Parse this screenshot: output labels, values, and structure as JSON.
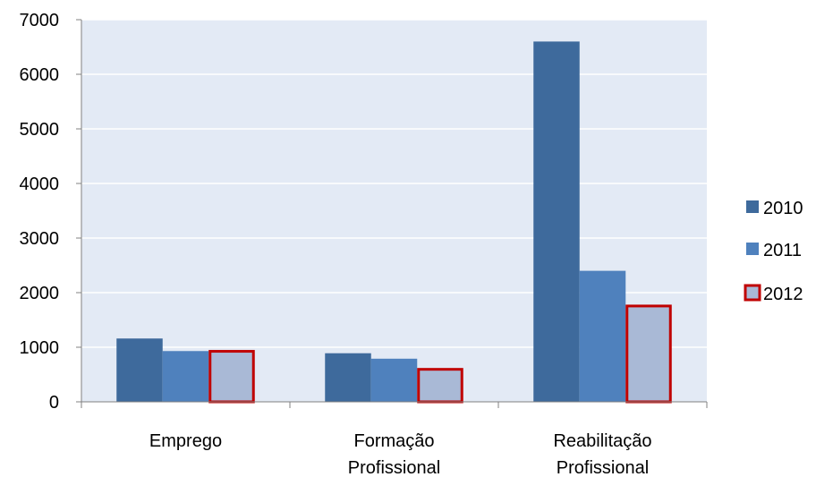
{
  "chart_data": {
    "type": "bar",
    "title": "",
    "xlabel": "",
    "ylabel": "",
    "categories": [
      [
        "Emprego"
      ],
      [
        "Formação",
        "Profissional"
      ],
      [
        "Reabilitação",
        "Profissional"
      ]
    ],
    "series": [
      {
        "name": "2010",
        "values": [
          1160,
          890,
          6600
        ],
        "fill": "#3e6a9c",
        "stroke": "none"
      },
      {
        "name": "2011",
        "values": [
          930,
          790,
          2400
        ],
        "fill": "#4f81bd",
        "stroke": "none"
      },
      {
        "name": "2012",
        "values": [
          950,
          620,
          1780
        ],
        "fill": "#a9b9d6",
        "stroke": "#c00000"
      }
    ],
    "ylim": [
      0,
      7000
    ],
    "yticks": [
      0,
      1000,
      2000,
      3000,
      4000,
      5000,
      6000,
      7000
    ],
    "grid": true,
    "legend_position": "right",
    "colors": {
      "plot_bg": "#e3eaf5",
      "grid": "#ffffff",
      "axis": "#808080"
    }
  }
}
